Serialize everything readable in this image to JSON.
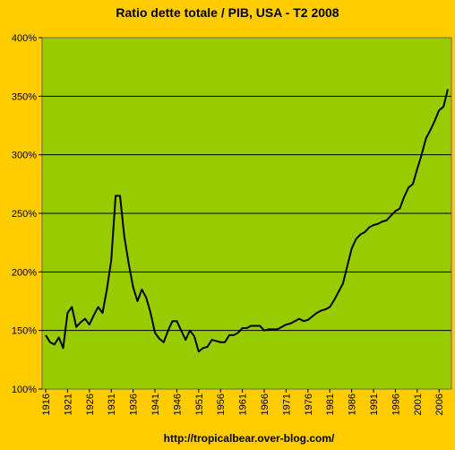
{
  "chart_data": {
    "type": "line",
    "title": "Ratio dette totale / PIB, USA - T2 2008",
    "xlabel": "",
    "ylabel": "",
    "xlim": [
      1916,
      2008
    ],
    "ylim": [
      100,
      400
    ],
    "y_ticks": [
      100,
      150,
      200,
      250,
      300,
      350,
      400
    ],
    "y_tick_labels": [
      "100%",
      "150%",
      "200%",
      "250%",
      "300%",
      "350%",
      "400%"
    ],
    "x_ticks": [
      1916,
      1921,
      1926,
      1931,
      1936,
      1941,
      1946,
      1951,
      1956,
      1961,
      1966,
      1971,
      1976,
      1981,
      1986,
      1991,
      1996,
      2001,
      2006
    ],
    "x_tick_labels": [
      "1916",
      "1921",
      "1926",
      "1931",
      "1936",
      "1941",
      "1946",
      "1951",
      "1956",
      "1961",
      "1966",
      "1971",
      "1976",
      "1981",
      "1986",
      "1991",
      "1996",
      "2001",
      "2006"
    ],
    "grid": "horizontal",
    "legend": "none",
    "series": [
      {
        "color": "#000000",
        "x": [
          1916,
          1917,
          1918,
          1919,
          1920,
          1921,
          1922,
          1923,
          1924,
          1925,
          1926,
          1927,
          1928,
          1929,
          1930,
          1931,
          1932,
          1933,
          1934,
          1935,
          1936,
          1937,
          1938,
          1939,
          1940,
          1941,
          1942,
          1943,
          1944,
          1945,
          1946,
          1947,
          1948,
          1949,
          1950,
          1951,
          1952,
          1953,
          1954,
          1955,
          1956,
          1957,
          1958,
          1959,
          1960,
          1961,
          1962,
          1963,
          1964,
          1965,
          1966,
          1967,
          1968,
          1969,
          1970,
          1971,
          1972,
          1973,
          1974,
          1975,
          1976,
          1977,
          1978,
          1979,
          1980,
          1981,
          1982,
          1983,
          1984,
          1985,
          1986,
          1987,
          1988,
          1989,
          1990,
          1991,
          1992,
          1993,
          1994,
          1995,
          1996,
          1997,
          1998,
          1999,
          2000,
          2001,
          2002,
          2003,
          2004,
          2005,
          2006,
          2007,
          2008
        ],
        "y": [
          146,
          140,
          138,
          144,
          135,
          165,
          170,
          153,
          157,
          160,
          155,
          163,
          170,
          165,
          185,
          210,
          265,
          265,
          230,
          207,
          187,
          175,
          185,
          178,
          165,
          148,
          143,
          140,
          150,
          158,
          158,
          150,
          142,
          150,
          145,
          132,
          135,
          136,
          142,
          141,
          140,
          140,
          146,
          146,
          148,
          152,
          152,
          154,
          154,
          154,
          150,
          151,
          151,
          151,
          153,
          155,
          156,
          158,
          160,
          158,
          159,
          162,
          165,
          167,
          168,
          170,
          176,
          183,
          190,
          205,
          220,
          228,
          232,
          234,
          238,
          240,
          241,
          243,
          244,
          248,
          252,
          254,
          264,
          272,
          275,
          288,
          300,
          314,
          321,
          329,
          338,
          341,
          356
        ]
      }
    ],
    "source_text": "http://tropicalbear.over-blog.com/"
  }
}
